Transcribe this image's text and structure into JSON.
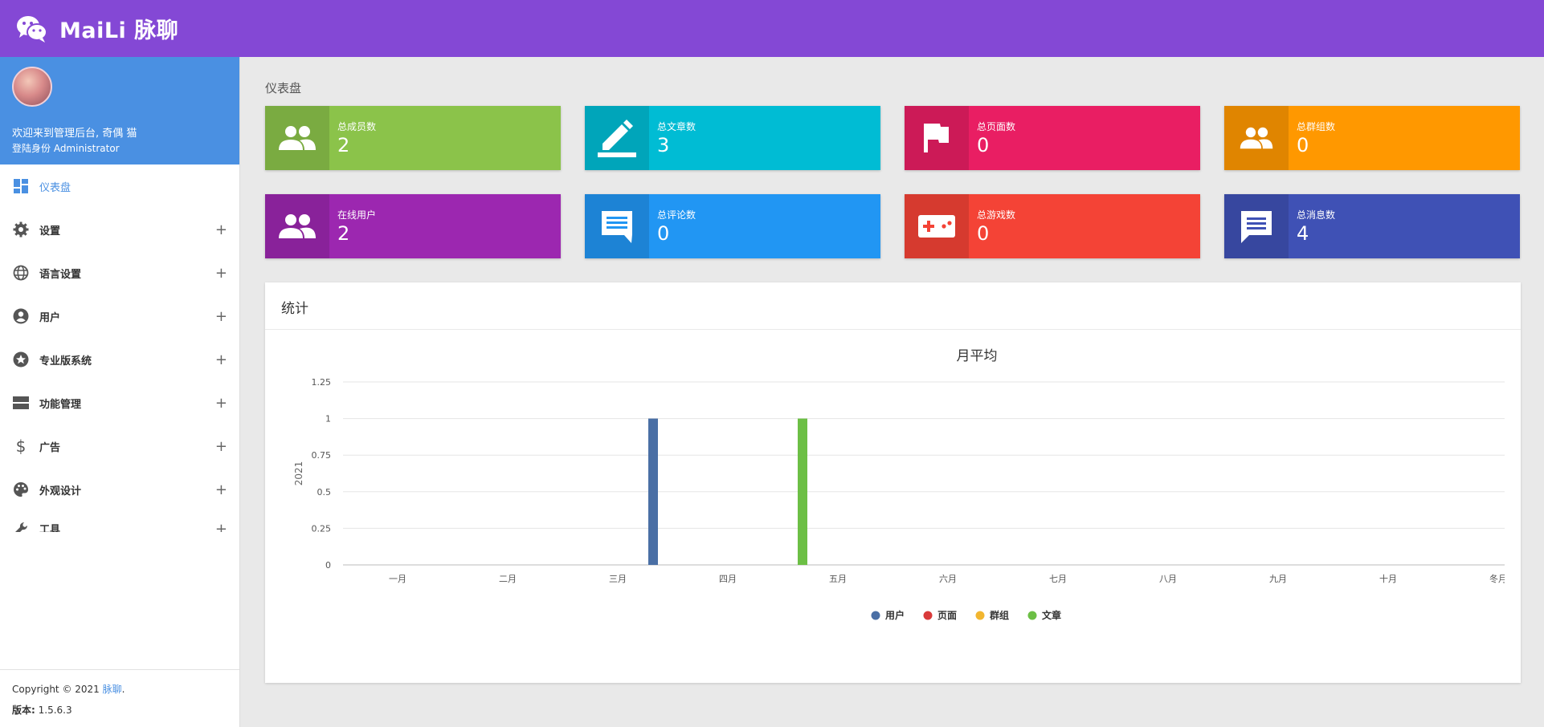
{
  "header": {
    "brand": "MaiLi 脉聊",
    "brand_icon": "wechat-icon"
  },
  "sidebar": {
    "welcome": "欢迎来到管理后台, 奇偶 猫",
    "role": "登陆身份 Administrator",
    "menu": [
      {
        "label": "仪表盘",
        "icon": "dashboard-icon",
        "active": true
      },
      {
        "label": "设置",
        "icon": "gear-icon"
      },
      {
        "label": "语言设置",
        "icon": "globe-icon"
      },
      {
        "label": "用户",
        "icon": "user-icon"
      },
      {
        "label": "专业版系统",
        "icon": "star-icon"
      },
      {
        "label": "功能管理",
        "icon": "storage-icon"
      },
      {
        "label": "广告",
        "icon": "dollar-icon"
      },
      {
        "label": "外观设计",
        "icon": "palette-icon"
      },
      {
        "label": "工具",
        "icon": "wrench-icon"
      }
    ],
    "footer": {
      "copyright": "Copyright © 2021",
      "link": "脉聊",
      "period": ".",
      "version_label": "版本:",
      "version": "1.5.6.3"
    }
  },
  "main": {
    "title": "仪表盘",
    "cards": [
      {
        "label": "总成员数",
        "value": "2",
        "color": "#8bc34a",
        "icon": "group-icon"
      },
      {
        "label": "总文章数",
        "value": "3",
        "color": "#00bcd4",
        "icon": "pencil-icon"
      },
      {
        "label": "总页面数",
        "value": "0",
        "color": "#e91e63",
        "icon": "flag-icon"
      },
      {
        "label": "总群组数",
        "value": "0",
        "color": "#ff9800",
        "icon": "group-icon"
      },
      {
        "label": "在线用户",
        "value": "2",
        "color": "#9c27b0",
        "icon": "group-icon"
      },
      {
        "label": "总评论数",
        "value": "0",
        "color": "#2196f3",
        "icon": "comment-icon"
      },
      {
        "label": "总游戏数",
        "value": "0",
        "color": "#f44336",
        "icon": "gamepad-icon"
      },
      {
        "label": "总消息数",
        "value": "4",
        "color": "#3f51b5",
        "icon": "message-icon"
      }
    ],
    "stats_title": "统计"
  },
  "chart_data": {
    "type": "bar",
    "title": "月平均",
    "ylabel": "2021",
    "xlabel": "",
    "categories": [
      "一月",
      "二月",
      "三月",
      "四月",
      "五月",
      "六月",
      "七月",
      "八月",
      "九月",
      "十月",
      "冬月"
    ],
    "ylim": [
      0,
      1.25
    ],
    "yticks": [
      "0",
      "0.25",
      "0.5",
      "0.75",
      "1",
      "1.25"
    ],
    "grid": true,
    "legend_position": "bottom",
    "series": [
      {
        "name": "用户",
        "color": "#4a6fa5",
        "values": [
          0,
          0,
          0,
          1,
          0,
          0,
          0,
          0,
          0,
          0,
          0
        ]
      },
      {
        "name": "页面",
        "color": "#d93a3a",
        "values": [
          0,
          0,
          0,
          0,
          0,
          0,
          0,
          0,
          0,
          0,
          0
        ]
      },
      {
        "name": "群组",
        "color": "#f2b630",
        "values": [
          0,
          0,
          0,
          0,
          0,
          0,
          0,
          0,
          0,
          0,
          0
        ]
      },
      {
        "name": "文章",
        "color": "#6cbf45",
        "values": [
          0,
          0,
          0,
          1,
          0,
          0,
          0,
          0,
          0,
          0,
          0
        ]
      }
    ]
  }
}
